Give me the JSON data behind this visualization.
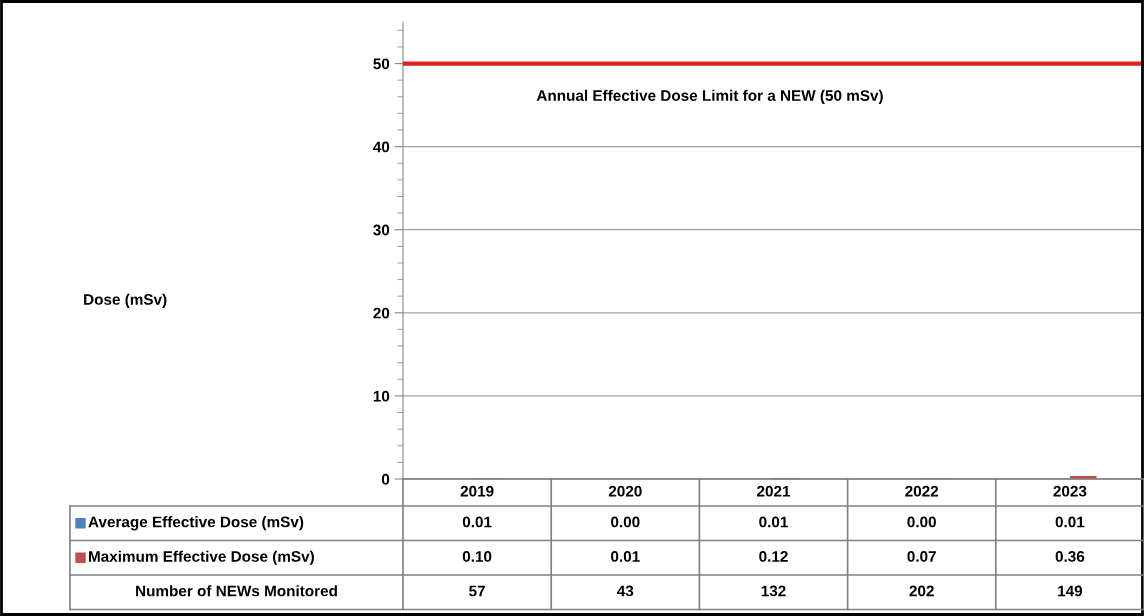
{
  "chart_data": {
    "type": "bar",
    "categories": [
      "2019",
      "2020",
      "2021",
      "2022",
      "2023"
    ],
    "series": [
      {
        "name": "Average Effective Dose (mSv)",
        "color": "#4f81bd",
        "values": [
          0.01,
          0.0,
          0.01,
          0.0,
          0.01
        ],
        "value_labels": [
          "0.01",
          "0.00",
          "0.01",
          "0.00",
          "0.01"
        ]
      },
      {
        "name": "Maximum Effective Dose (mSv)",
        "color": "#c0504d",
        "values": [
          0.1,
          0.01,
          0.12,
          0.07,
          0.36
        ],
        "value_labels": [
          "0.10",
          "0.01",
          "0.12",
          "0.07",
          "0.36"
        ]
      }
    ],
    "ylim": [
      0,
      55
    ],
    "yticks": [
      0,
      10,
      20,
      30,
      40,
      50
    ],
    "grid": "y",
    "legend": "bottom left",
    "ref_lines": [
      {
        "axis": "y",
        "value": 50,
        "label": "Annual Effective Dose Limit for a NEW (50 mSv)",
        "color": "#e02020"
      }
    ],
    "annotations": [
      "Dose (mSv)",
      "Number of NEWs Monitored",
      "57",
      "43",
      "132",
      "202",
      "149"
    ]
  }
}
